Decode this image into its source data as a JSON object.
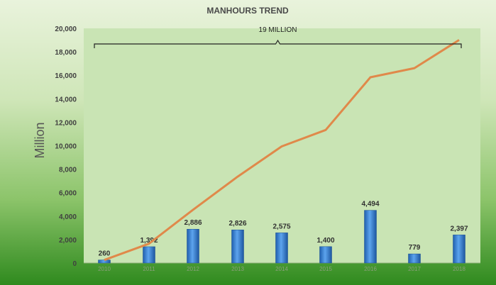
{
  "chart_data": {
    "type": "bar",
    "title": "MANHOURS TREND",
    "ylabel": "Million",
    "xlabel": "",
    "categories": [
      "2010",
      "2011",
      "2012",
      "2013",
      "2014",
      "2015",
      "2016",
      "2017",
      "2018"
    ],
    "ylim": [
      0,
      20000
    ],
    "yticks": [
      0,
      2000,
      4000,
      6000,
      8000,
      10000,
      12000,
      14000,
      16000,
      18000,
      20000
    ],
    "ytick_labels": [
      "0",
      "2,000",
      "4,000",
      "6,000",
      "8,000",
      "10,000",
      "12,000",
      "14,000",
      "16,000",
      "18,000",
      "20,000"
    ],
    "series": [
      {
        "kind": "bar",
        "values": [
          260,
          1392,
          2886,
          2826,
          2575,
          1400,
          4494,
          779,
          2397
        ],
        "labels": [
          "260",
          "1,392",
          "2,886",
          "2,826",
          "2,575",
          "1,400",
          "4,494",
          "779",
          "2,397"
        ],
        "color": "#3f86d6"
      },
      {
        "kind": "line",
        "values": [
          260,
          1652,
          4538,
          7364,
          9939,
          11339,
          15833,
          16612,
          19009
        ],
        "color": "#e0894a"
      }
    ],
    "annotation": {
      "text": "19 MILLION"
    },
    "grid": false,
    "legend": "none"
  },
  "colors": {
    "plot_background": "#c9e4b4",
    "bar": "#3f86d6",
    "line": "#e0894a"
  }
}
